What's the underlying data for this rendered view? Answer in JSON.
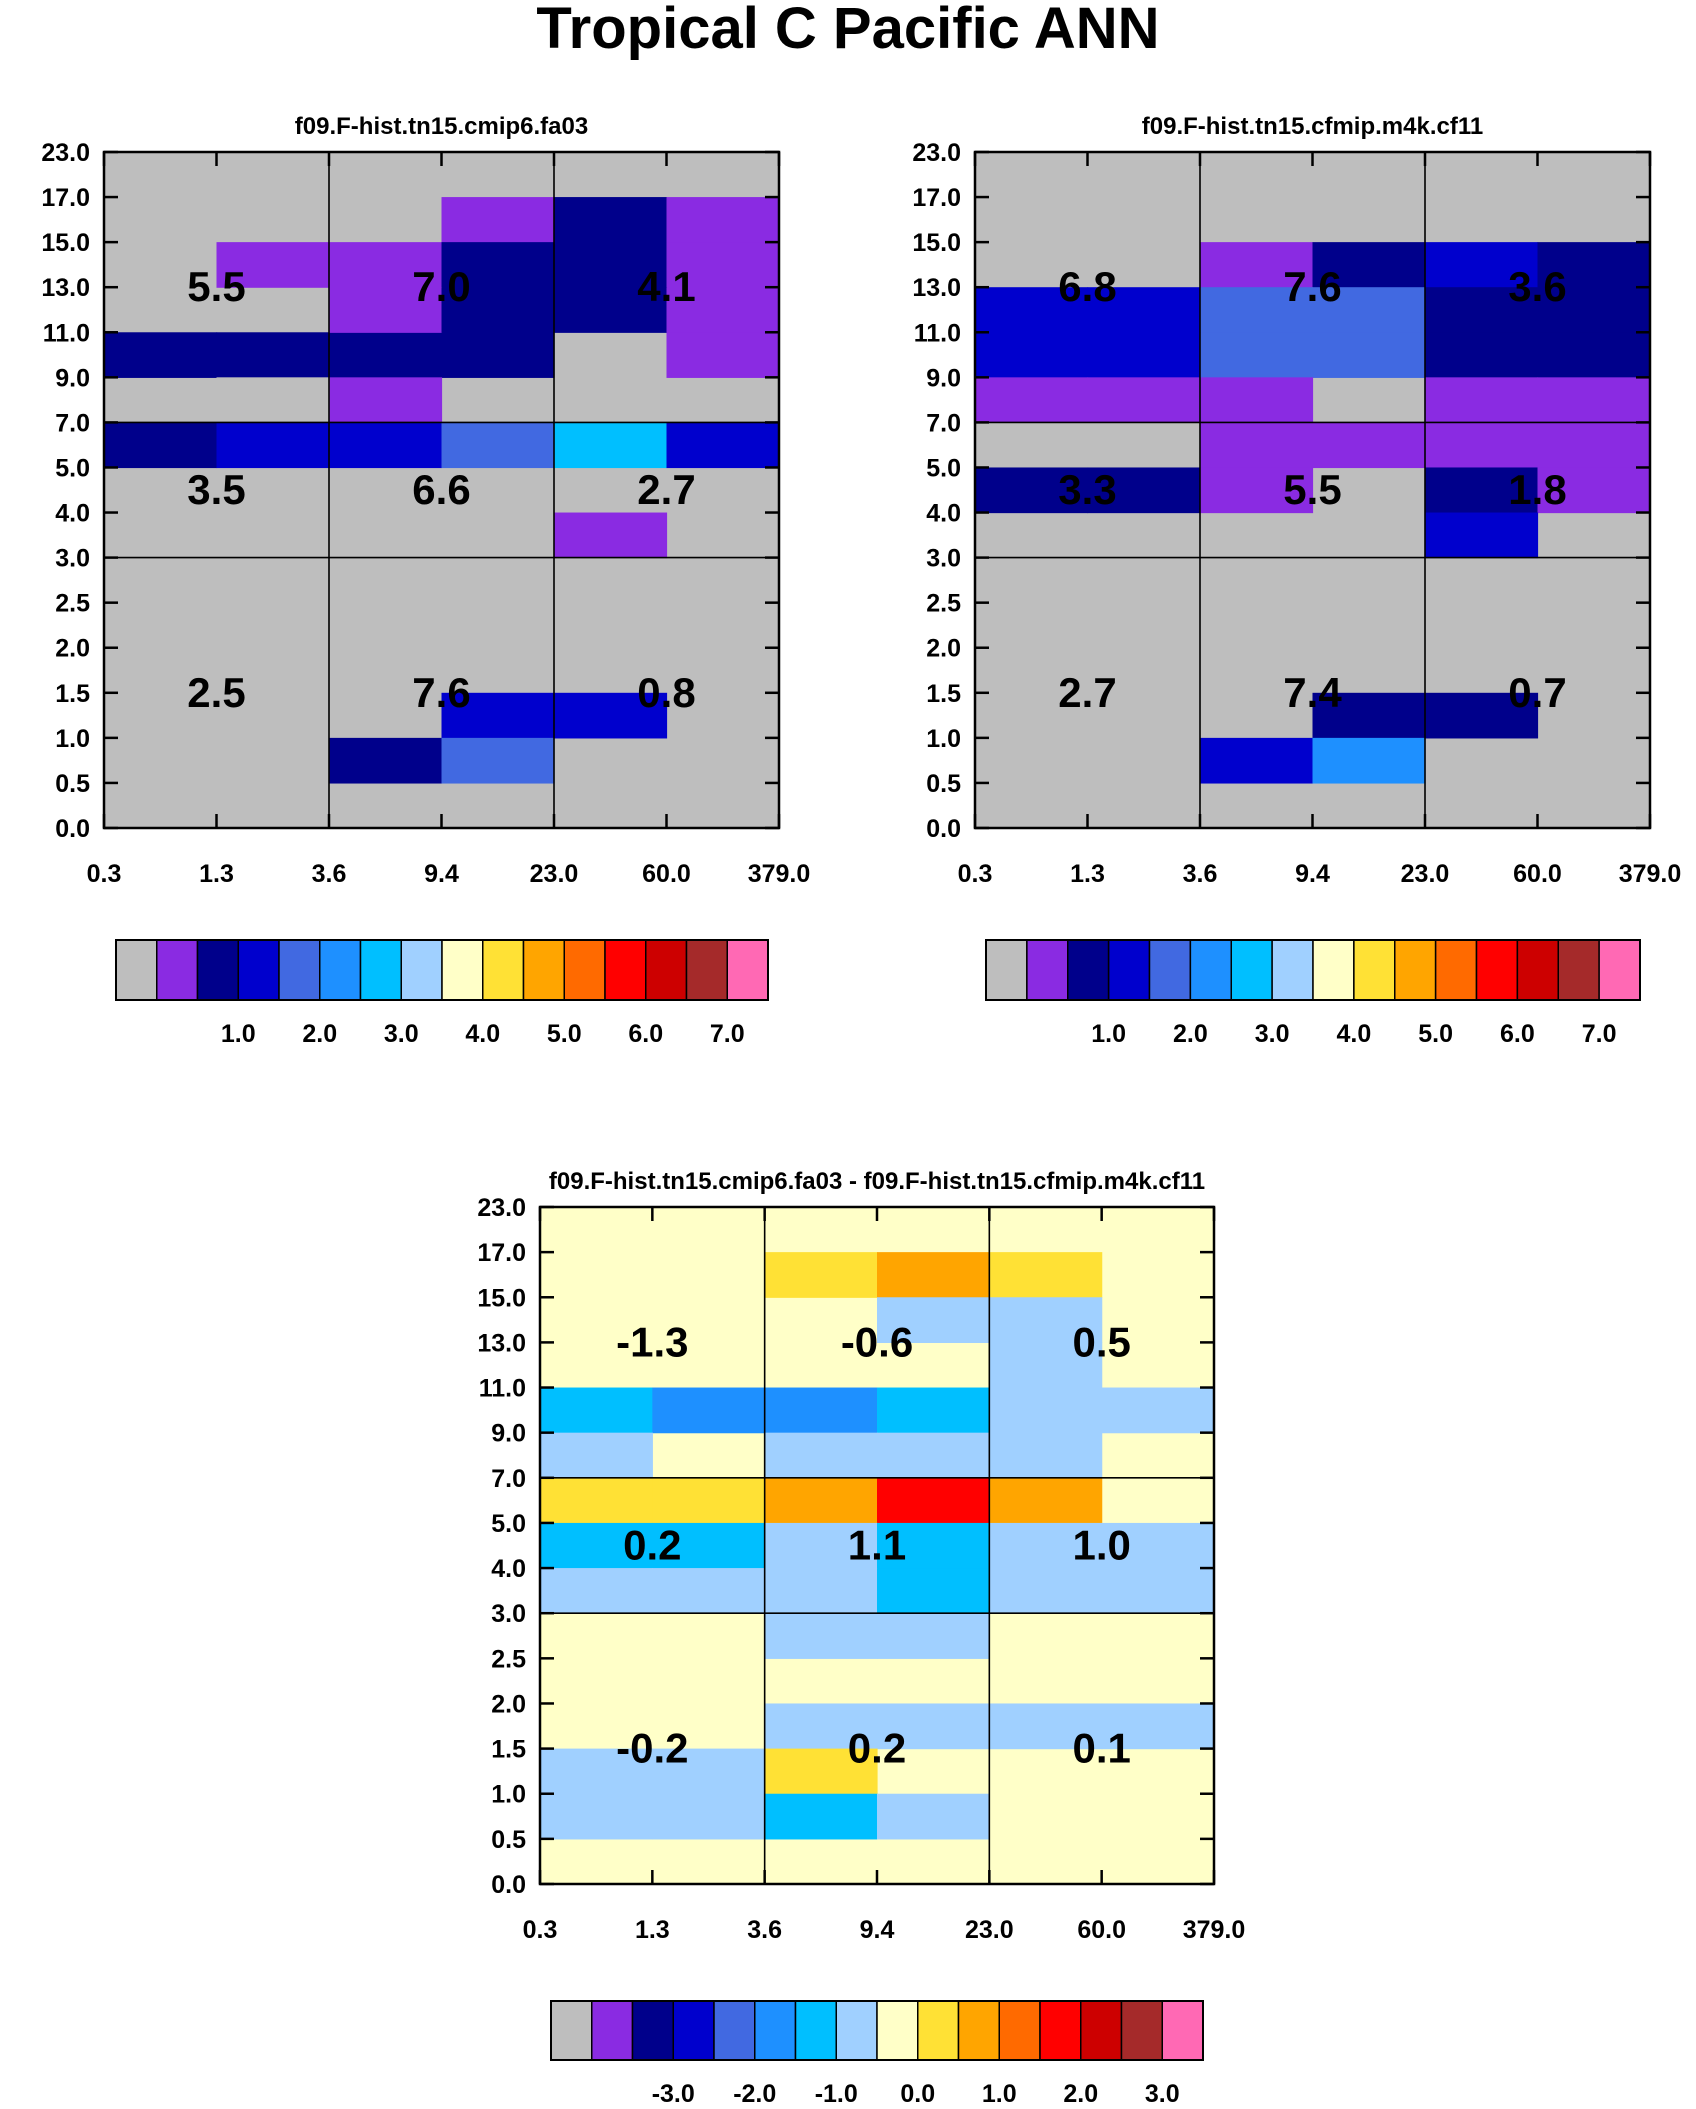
{
  "page": {
    "title": "Tropical C Pacific ANN"
  },
  "colors": {
    "background_gray": "#bebebe",
    "grid": "#000000",
    "palette": [
      "#bebebe",
      "#8a2be2",
      "#00008b",
      "#0000cd",
      "#4169e1",
      "#1e90ff",
      "#00bfff",
      "#a0d0ff",
      "#ffffc8",
      "#ffe135",
      "#ffa500",
      "#ff6a00",
      "#ff0000",
      "#cd0000",
      "#a52a2a",
      "#ff69b4"
    ]
  },
  "chart_data": [
    {
      "id": "panel1",
      "type": "heatmap",
      "title": "f09.F-hist.tn15.cmip6.fa03",
      "x_tick_labels": [
        "0.3",
        "1.3",
        "3.6",
        "9.4",
        "23.0",
        "60.0",
        "379.0"
      ],
      "y_tick_labels": [
        "0.0",
        "0.5",
        "1.0",
        "1.5",
        "2.0",
        "2.5",
        "3.0",
        "4.0",
        "5.0",
        "7.0",
        "9.0",
        "11.0",
        "13.0",
        "15.0",
        "17.0",
        "23.0"
      ],
      "background_index": 0,
      "cells": [
        {
          "x": 1,
          "y": 12,
          "c": 1
        },
        {
          "x": 3,
          "y": 13,
          "c": 1
        },
        {
          "x": 4,
          "y": 13,
          "c": 2
        },
        {
          "x": 2,
          "y": 12,
          "c": 1
        },
        {
          "x": 3,
          "y": 12,
          "c": 2
        },
        {
          "x": 4,
          "y": 12,
          "c": 2
        },
        {
          "x": 5,
          "y": 12,
          "c": 1
        },
        {
          "x": 5,
          "y": 13,
          "c": 1
        },
        {
          "x": 0,
          "y": 10,
          "c": 2
        },
        {
          "x": 1,
          "y": 10,
          "c": 2
        },
        {
          "x": 2,
          "y": 10,
          "c": 2
        },
        {
          "x": 3,
          "y": 10,
          "c": 2
        },
        {
          "x": 5,
          "y": 10,
          "c": 1
        },
        {
          "x": 2,
          "y": 11,
          "c": 1
        },
        {
          "x": 3,
          "y": 11,
          "c": 2
        },
        {
          "x": 4,
          "y": 11,
          "c": 2
        },
        {
          "x": 5,
          "y": 11,
          "c": 1
        },
        {
          "x": 2,
          "y": 9,
          "c": 1
        },
        {
          "x": 1,
          "y": 9,
          "c": 0
        },
        {
          "x": 0,
          "y": 8,
          "c": 2
        },
        {
          "x": 1,
          "y": 8,
          "c": 3
        },
        {
          "x": 2,
          "y": 8,
          "c": 3
        },
        {
          "x": 3,
          "y": 8,
          "c": 4
        },
        {
          "x": 4,
          "y": 8,
          "c": 6
        },
        {
          "x": 5,
          "y": 8,
          "c": 3
        },
        {
          "x": 4,
          "y": 6,
          "c": 1
        },
        {
          "x": 3,
          "y": 2,
          "c": 3
        },
        {
          "x": 4,
          "y": 2,
          "c": 3
        },
        {
          "x": 2,
          "y": 1,
          "c": 2
        },
        {
          "x": 3,
          "y": 1,
          "c": 4
        }
      ],
      "region_values": {
        "high": [
          "5.5",
          "7.0",
          "4.1"
        ],
        "mid": [
          "3.5",
          "6.6",
          "2.7"
        ],
        "low": [
          "2.5",
          "7.6",
          "0.8"
        ]
      },
      "colorbar": {
        "colors_index": [
          0,
          1,
          2,
          3,
          4,
          5,
          6,
          7,
          8,
          9,
          10,
          11,
          12,
          13,
          14,
          15
        ],
        "labels": [
          "1.0",
          "2.0",
          "3.0",
          "4.0",
          "5.0",
          "6.0",
          "7.0"
        ]
      }
    },
    {
      "id": "panel2",
      "type": "heatmap",
      "title": "f09.F-hist.tn15.cfmip.m4k.cf11",
      "x_tick_labels": [
        "0.3",
        "1.3",
        "3.6",
        "9.4",
        "23.0",
        "60.0",
        "379.0"
      ],
      "y_tick_labels": [
        "0.0",
        "0.5",
        "1.0",
        "1.5",
        "2.0",
        "2.5",
        "3.0",
        "4.0",
        "5.0",
        "7.0",
        "9.0",
        "11.0",
        "13.0",
        "15.0",
        "17.0",
        "23.0"
      ],
      "background_index": 0,
      "cells": [
        {
          "x": 2,
          "y": 12,
          "c": 1
        },
        {
          "x": 3,
          "y": 12,
          "c": 2
        },
        {
          "x": 4,
          "y": 12,
          "c": 3
        },
        {
          "x": 5,
          "y": 12,
          "c": 2
        },
        {
          "x": 0,
          "y": 11,
          "c": 3
        },
        {
          "x": 1,
          "y": 11,
          "c": 3
        },
        {
          "x": 2,
          "y": 11,
          "c": 4
        },
        {
          "x": 3,
          "y": 11,
          "c": 4
        },
        {
          "x": 4,
          "y": 11,
          "c": 2
        },
        {
          "x": 5,
          "y": 11,
          "c": 2
        },
        {
          "x": 0,
          "y": 10,
          "c": 3
        },
        {
          "x": 1,
          "y": 10,
          "c": 3
        },
        {
          "x": 2,
          "y": 10,
          "c": 4
        },
        {
          "x": 3,
          "y": 10,
          "c": 4
        },
        {
          "x": 4,
          "y": 10,
          "c": 2
        },
        {
          "x": 5,
          "y": 10,
          "c": 2
        },
        {
          "x": 0,
          "y": 9,
          "c": 1
        },
        {
          "x": 1,
          "y": 9,
          "c": 1
        },
        {
          "x": 2,
          "y": 9,
          "c": 1
        },
        {
          "x": 4,
          "y": 9,
          "c": 1
        },
        {
          "x": 5,
          "y": 9,
          "c": 1
        },
        {
          "x": 2,
          "y": 8,
          "c": 1
        },
        {
          "x": 3,
          "y": 8,
          "c": 1
        },
        {
          "x": 4,
          "y": 8,
          "c": 1
        },
        {
          "x": 5,
          "y": 8,
          "c": 1
        },
        {
          "x": 0,
          "y": 7,
          "c": 2
        },
        {
          "x": 1,
          "y": 7,
          "c": 2
        },
        {
          "x": 2,
          "y": 7,
          "c": 1
        },
        {
          "x": 4,
          "y": 7,
          "c": 2
        },
        {
          "x": 5,
          "y": 7,
          "c": 1
        },
        {
          "x": 4,
          "y": 6,
          "c": 3
        },
        {
          "x": 3,
          "y": 2,
          "c": 2
        },
        {
          "x": 4,
          "y": 2,
          "c": 2
        },
        {
          "x": 2,
          "y": 1,
          "c": 3
        },
        {
          "x": 3,
          "y": 1,
          "c": 5
        }
      ],
      "region_values": {
        "high": [
          "6.8",
          "7.6",
          "3.6"
        ],
        "mid": [
          "3.3",
          "5.5",
          "1.8"
        ],
        "low": [
          "2.7",
          "7.4",
          "0.7"
        ]
      },
      "colorbar": {
        "colors_index": [
          0,
          1,
          2,
          3,
          4,
          5,
          6,
          7,
          8,
          9,
          10,
          11,
          12,
          13,
          14,
          15
        ],
        "labels": [
          "1.0",
          "2.0",
          "3.0",
          "4.0",
          "5.0",
          "6.0",
          "7.0"
        ]
      }
    },
    {
      "id": "panel3",
      "type": "heatmap",
      "title": "f09.F-hist.tn15.cmip6.fa03 - f09.F-hist.tn15.cfmip.m4k.cf11",
      "x_tick_labels": [
        "0.3",
        "1.3",
        "3.6",
        "9.4",
        "23.0",
        "60.0",
        "379.0"
      ],
      "y_tick_labels": [
        "0.0",
        "0.5",
        "1.0",
        "1.5",
        "2.0",
        "2.5",
        "3.0",
        "4.0",
        "5.0",
        "7.0",
        "9.0",
        "11.0",
        "13.0",
        "15.0",
        "17.0",
        "23.0"
      ],
      "background_index": 8,
      "cells": [
        {
          "x": 2,
          "y": 13,
          "c": 9
        },
        {
          "x": 3,
          "y": 13,
          "c": 10
        },
        {
          "x": 4,
          "y": 13,
          "c": 9
        },
        {
          "x": 3,
          "y": 12,
          "c": 7
        },
        {
          "x": 4,
          "y": 12,
          "c": 7
        },
        {
          "x": 0,
          "y": 11,
          "c": 8
        },
        {
          "x": 4,
          "y": 11,
          "c": 7
        },
        {
          "x": 0,
          "y": 10,
          "c": 6
        },
        {
          "x": 1,
          "y": 10,
          "c": 5
        },
        {
          "x": 2,
          "y": 10,
          "c": 5
        },
        {
          "x": 3,
          "y": 10,
          "c": 6
        },
        {
          "x": 4,
          "y": 10,
          "c": 7
        },
        {
          "x": 5,
          "y": 10,
          "c": 7
        },
        {
          "x": 0,
          "y": 9,
          "c": 7
        },
        {
          "x": 2,
          "y": 9,
          "c": 7
        },
        {
          "x": 3,
          "y": 9,
          "c": 7
        },
        {
          "x": 4,
          "y": 9,
          "c": 7
        },
        {
          "x": 0,
          "y": 8,
          "c": 9
        },
        {
          "x": 1,
          "y": 8,
          "c": 9
        },
        {
          "x": 2,
          "y": 8,
          "c": 10
        },
        {
          "x": 3,
          "y": 8,
          "c": 12
        },
        {
          "x": 4,
          "y": 8,
          "c": 10
        },
        {
          "x": 0,
          "y": 7,
          "c": 6
        },
        {
          "x": 1,
          "y": 7,
          "c": 6
        },
        {
          "x": 2,
          "y": 7,
          "c": 7
        },
        {
          "x": 3,
          "y": 7,
          "c": 6
        },
        {
          "x": 4,
          "y": 7,
          "c": 7
        },
        {
          "x": 5,
          "y": 7,
          "c": 7
        },
        {
          "x": 0,
          "y": 6,
          "c": 7
        },
        {
          "x": 1,
          "y": 6,
          "c": 7
        },
        {
          "x": 2,
          "y": 6,
          "c": 7
        },
        {
          "x": 3,
          "y": 6,
          "c": 6
        },
        {
          "x": 4,
          "y": 6,
          "c": 7
        },
        {
          "x": 5,
          "y": 6,
          "c": 7
        },
        {
          "x": 2,
          "y": 5,
          "c": 7
        },
        {
          "x": 3,
          "y": 5,
          "c": 7
        },
        {
          "x": 2,
          "y": 3,
          "c": 7
        },
        {
          "x": 3,
          "y": 3,
          "c": 7
        },
        {
          "x": 4,
          "y": 3,
          "c": 7
        },
        {
          "x": 5,
          "y": 3,
          "c": 7
        },
        {
          "x": 0,
          "y": 2,
          "c": 7
        },
        {
          "x": 1,
          "y": 2,
          "c": 7
        },
        {
          "x": 2,
          "y": 2,
          "c": 9
        },
        {
          "x": 0,
          "y": 1,
          "c": 7
        },
        {
          "x": 1,
          "y": 1,
          "c": 7
        },
        {
          "x": 2,
          "y": 1,
          "c": 6
        },
        {
          "x": 3,
          "y": 1,
          "c": 7
        }
      ],
      "region_values": {
        "high": [
          "-1.3",
          "-0.6",
          "0.5"
        ],
        "mid": [
          "0.2",
          "1.1",
          "1.0"
        ],
        "low": [
          "-0.2",
          "0.2",
          "0.1"
        ]
      },
      "colorbar": {
        "colors_index": [
          0,
          1,
          2,
          3,
          4,
          5,
          6,
          7,
          8,
          9,
          10,
          11,
          12,
          13,
          14,
          15
        ],
        "labels": [
          "-3.0",
          "-2.0",
          "-1.0",
          "0.0",
          "1.0",
          "2.0",
          "3.0"
        ]
      }
    }
  ]
}
